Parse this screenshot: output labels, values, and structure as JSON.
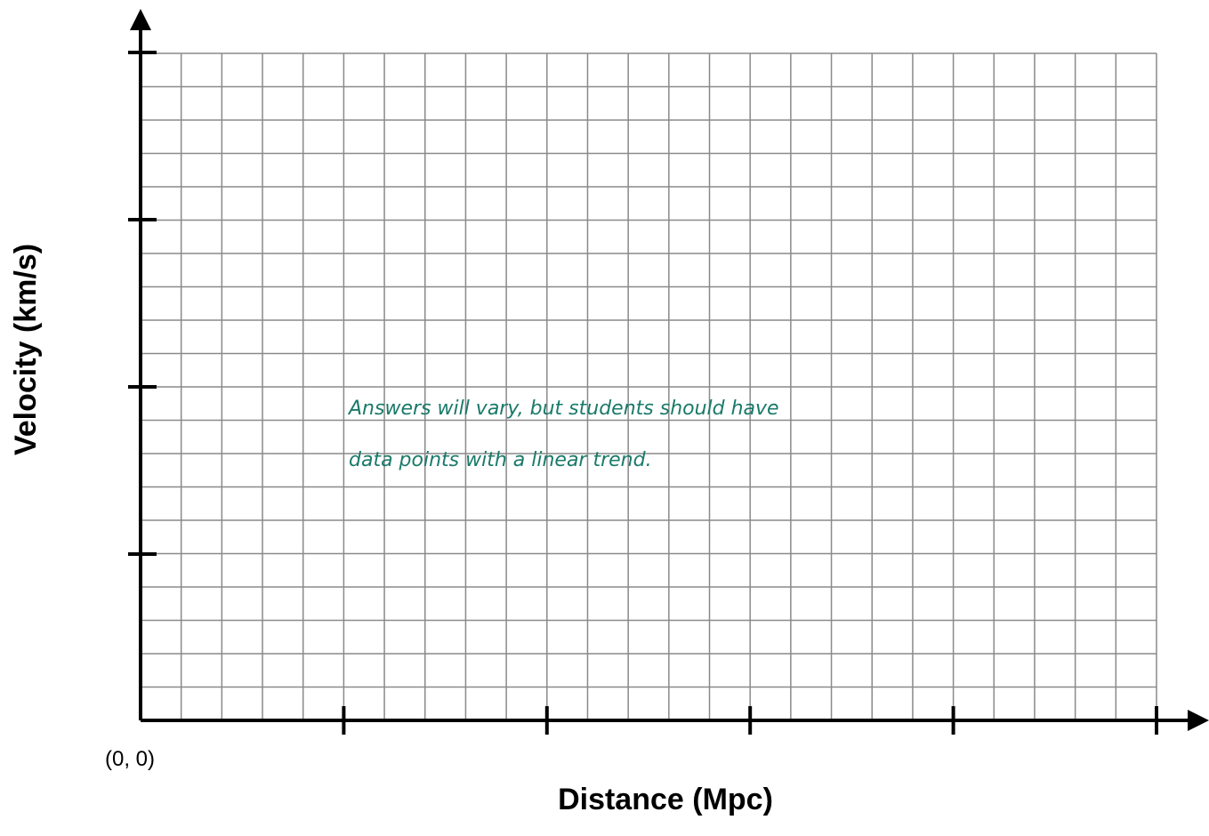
{
  "chart_data": {
    "type": "scatter",
    "title": "",
    "xlabel": "Distance (Mpc)",
    "ylabel": "Velocity (km/s)",
    "origin_label": "(0, 0)",
    "x_major_ticks": 5,
    "y_major_ticks": 4,
    "x_grid_cells": 25,
    "y_grid_cells": 20,
    "grid": true,
    "annotation": [
      "Answers will vary, but students should have",
      "data points with a linear trend."
    ],
    "series": [],
    "colors": {
      "grid": "#8a8a8a",
      "axis": "#000000",
      "annotation": "#1a7a6a"
    }
  }
}
